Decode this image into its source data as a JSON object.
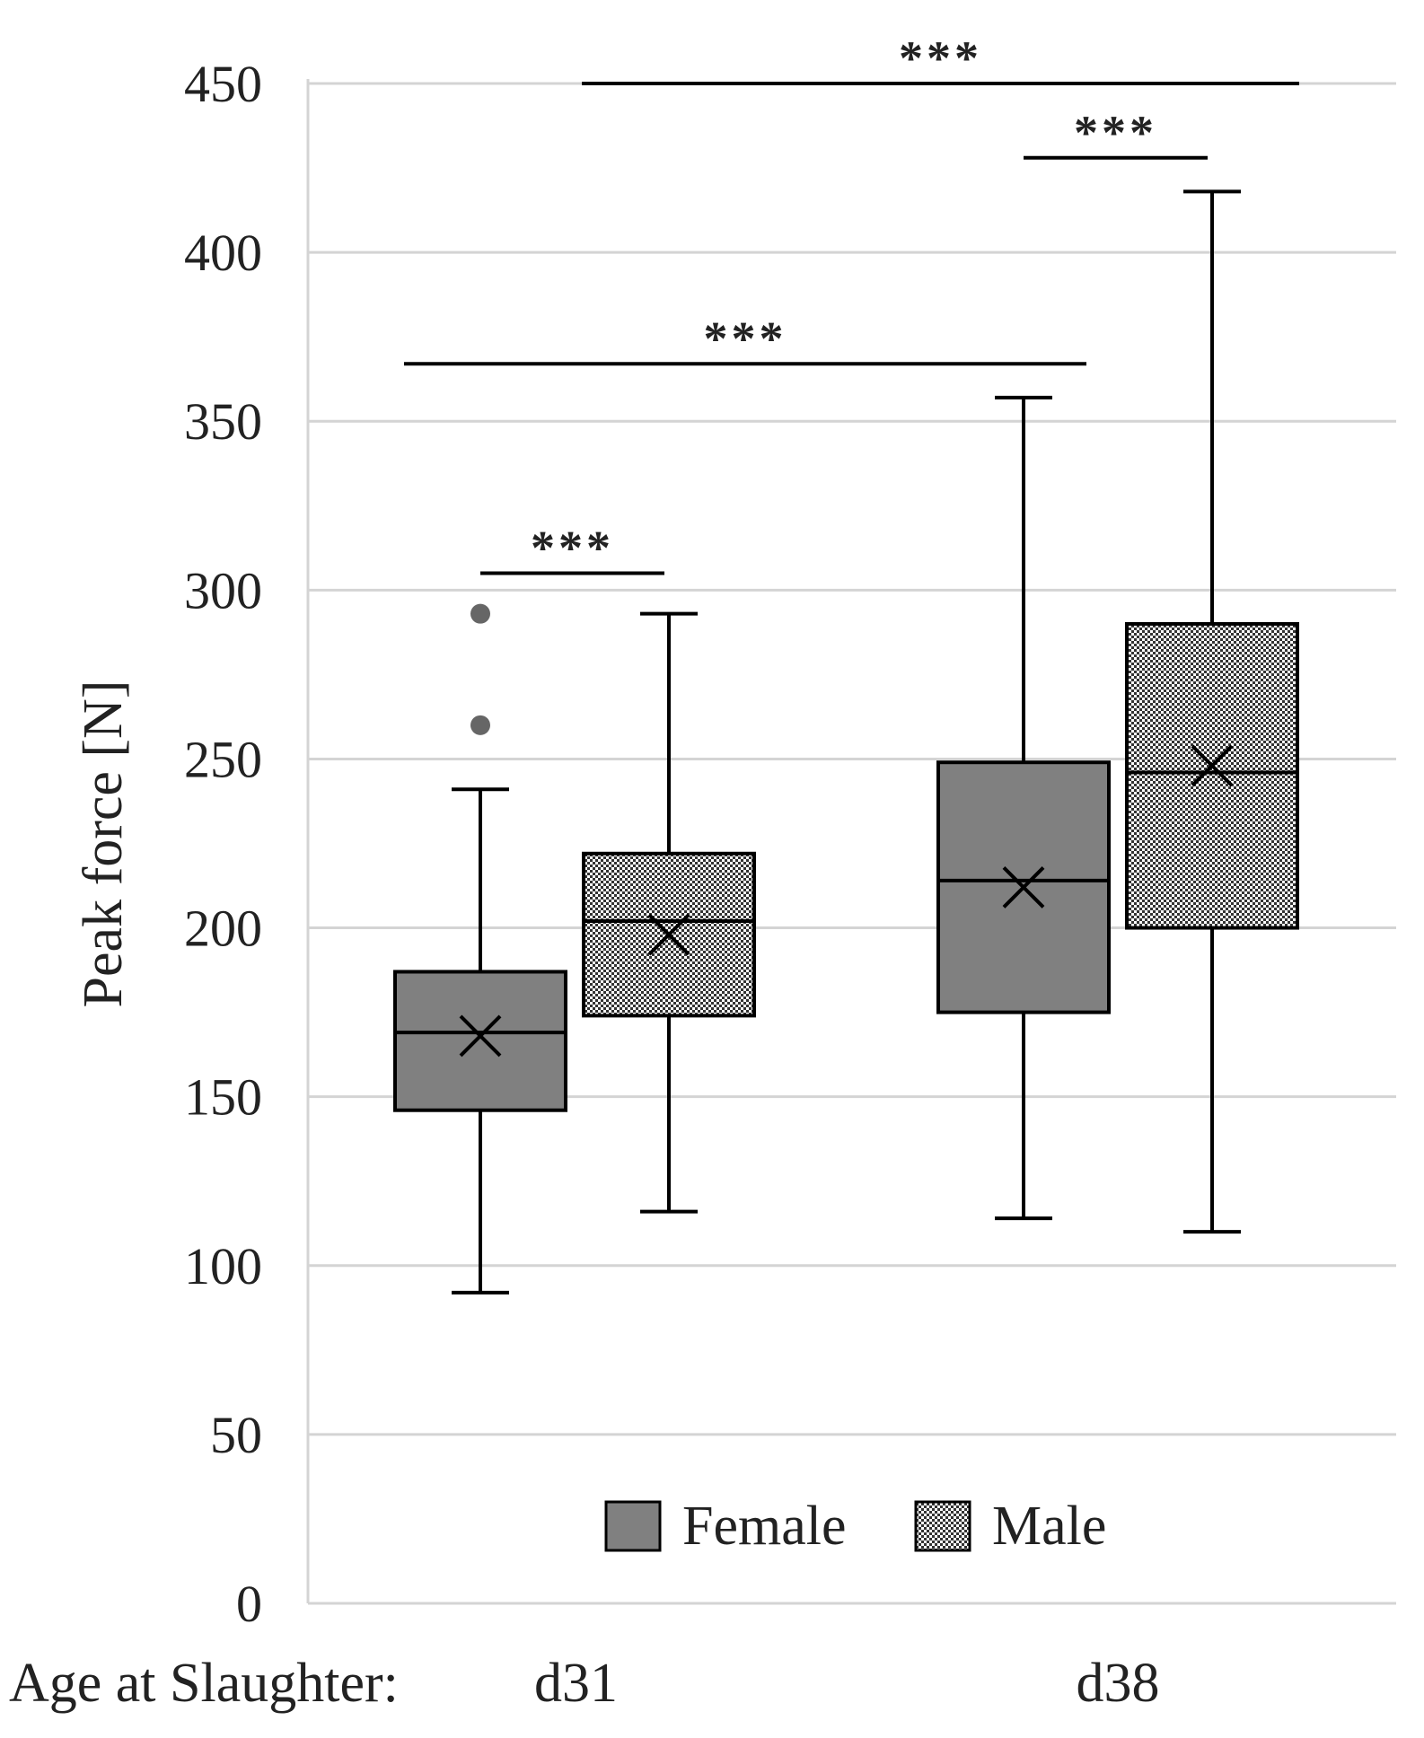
{
  "chart_data": {
    "type": "box",
    "ylabel": "Peak force [N]",
    "xlabel_prefix": "Age at Slaughter:",
    "ylim": [
      0,
      450
    ],
    "yticks": [
      0,
      50,
      100,
      150,
      200,
      250,
      300,
      350,
      400,
      450
    ],
    "grid": true,
    "legend_position": "bottom-center",
    "categories": [
      "d31",
      "d38"
    ],
    "series": [
      {
        "name": "Female",
        "pattern": "solid",
        "color": "#808080",
        "boxes": [
          {
            "category": "d31",
            "whisker_low": 92,
            "q1": 146,
            "median": 169,
            "q3": 187,
            "whisker_high": 241,
            "mean": 168,
            "outliers": [
              260,
              293
            ]
          },
          {
            "category": "d38",
            "whisker_low": 114,
            "q1": 175,
            "median": 214,
            "q3": 249,
            "whisker_high": 357,
            "mean": 212,
            "outliers": []
          }
        ]
      },
      {
        "name": "Male",
        "pattern": "checkered",
        "color": "#333333",
        "boxes": [
          {
            "category": "d31",
            "whisker_low": 116,
            "q1": 174,
            "median": 202,
            "q3": 222,
            "whisker_high": 293,
            "mean": 198,
            "outliers": []
          },
          {
            "category": "d38",
            "whisker_low": 110,
            "q1": 200,
            "median": 246,
            "q3": 290,
            "whisker_high": 418,
            "mean": 248,
            "outliers": []
          }
        ]
      }
    ],
    "annotations": [
      {
        "label": "***",
        "from": "d31 Female",
        "to": "d31 Male",
        "y": 305
      },
      {
        "label": "***",
        "from": "d31",
        "to": "d38 Female",
        "y": 367
      },
      {
        "label": "***",
        "from": "d38 Female",
        "to": "d38 Male",
        "y": 428
      },
      {
        "label": "***",
        "from": "d31 Male",
        "to": "d38",
        "y": 450
      }
    ]
  }
}
